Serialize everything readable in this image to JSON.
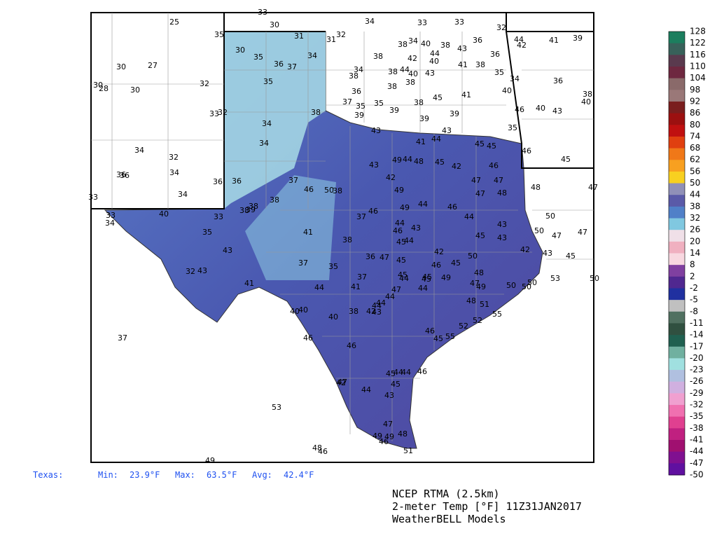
{
  "map": {
    "stations": [
      25,
      33,
      30,
      35,
      31,
      32,
      31,
      34,
      33,
      33,
      32,
      30,
      35,
      36,
      37,
      34,
      30,
      27,
      30,
      28,
      30,
      32,
      35,
      33,
      32,
      34,
      34,
      38,
      34,
      32,
      34,
      36,
      36,
      34,
      36,
      33,
      33,
      34,
      40,
      33,
      36,
      37,
      38,
      46,
      50,
      38,
      38,
      39,
      38,
      35,
      43,
      32,
      43,
      41,
      37,
      41,
      35,
      38,
      37,
      46,
      37,
      41,
      44,
      40,
      40,
      40,
      38,
      42,
      44,
      44,
      43,
      46,
      46,
      42,
      47,
      44,
      43,
      45,
      45,
      44,
      44,
      46,
      53,
      48,
      46,
      49,
      37,
      47,
      49,
      49,
      48,
      46,
      51,
      43,
      49,
      44,
      48,
      45,
      42,
      45,
      45,
      46,
      47,
      47,
      48,
      47,
      46,
      44,
      49,
      49,
      43,
      42,
      44,
      46,
      43,
      44,
      45,
      42,
      45,
      46,
      45,
      49,
      50,
      48,
      47,
      49,
      48,
      51,
      55,
      52,
      52,
      46,
      45,
      55,
      47,
      36,
      45,
      45,
      44,
      45,
      47,
      44,
      44,
      44,
      45,
      43,
      43,
      42,
      50,
      50,
      34,
      40,
      42,
      44,
      40,
      38,
      38,
      43,
      36,
      36,
      41,
      38,
      35,
      34,
      40,
      46,
      40,
      43,
      35,
      46,
      45,
      44,
      42,
      41,
      39,
      36,
      38,
      40,
      34,
      38,
      38,
      44,
      40,
      43,
      38,
      38,
      36,
      38,
      37,
      35,
      35,
      39,
      39,
      38,
      45,
      41,
      39,
      39,
      43,
      44,
      41,
      48,
      47,
      50,
      50,
      47,
      47,
      43,
      45,
      53,
      50,
      50
    ]
  },
  "colorbar": {
    "ticks": [
      128,
      122,
      116,
      110,
      104,
      98,
      92,
      86,
      80,
      74,
      68,
      62,
      56,
      50,
      44,
      38,
      32,
      26,
      20,
      14,
      8,
      2,
      -2,
      -5,
      -8,
      -11,
      -14,
      -17,
      -20,
      -23,
      -26,
      -29,
      -32,
      -35,
      -38,
      -41,
      -44,
      -47,
      -50
    ],
    "colors": [
      "#1c7e5e",
      "#38615a",
      "#5a3a4e",
      "#6e2840",
      "#8a6a6a",
      "#9a7878",
      "#7a1e1e",
      "#9c1010",
      "#c01010",
      "#e04010",
      "#f07818",
      "#f8a020",
      "#f8d020",
      "#9090b8",
      "#5a5aa8",
      "#5080c8",
      "#80c8e0",
      "#f0e0e8",
      "#f0b0c0",
      "#f8d8e0",
      "#8040a0",
      "#502890",
      "#2030a0",
      "#c0c0c0",
      "#507060",
      "#305040",
      "#206050",
      "#70b0a0",
      "#a0e0e0",
      "#b0c0e0",
      "#d0b0e0",
      "#f0a0d0",
      "#f070b0",
      "#e04090",
      "#c02080",
      "#a01070",
      "#801090",
      "#6010a0"
    ]
  },
  "stats": {
    "region": "Texas:",
    "min_label": "Min:",
    "min": "23.9°F",
    "max_label": "Max:",
    "max": "63.5°F",
    "avg_label": "Avg:",
    "avg": "42.4°F"
  },
  "footer": {
    "line1": "NCEP RTMA (2.5km)",
    "line2": "2-meter Temp [°F] 11Z31JAN2017",
    "line3": "WeatherBELL Models"
  }
}
